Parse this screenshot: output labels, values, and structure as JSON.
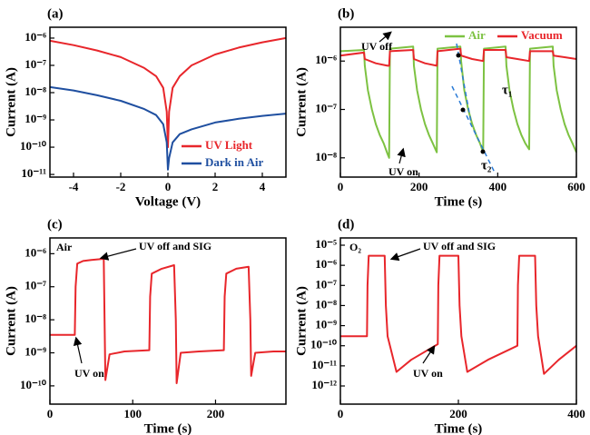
{
  "chart_data": [
    {
      "type": "line",
      "title": "(a)",
      "xlabel": "Voltage (V)",
      "ylabel": "Current (A)",
      "yscale": "log",
      "legend": "lower right",
      "xlim": [
        -5,
        5
      ],
      "xticks": [
        -4,
        -2,
        0,
        2,
        4
      ],
      "ylim": [
        8e-12,
        2.5e-06
      ],
      "yticks": [
        {
          "value": 1e-11,
          "label": "10⁻¹¹"
        },
        {
          "value": 1e-10,
          "label": "10⁻¹⁰"
        },
        {
          "value": 1e-09,
          "label": "10⁻⁹"
        },
        {
          "value": 1e-08,
          "label": "10⁻⁸"
        },
        {
          "value": 1e-07,
          "label": "10⁻⁷"
        },
        {
          "value": 1e-06,
          "label": "10⁻⁶"
        }
      ],
      "series": [
        {
          "name": "UV Light",
          "color": "#e8262b",
          "x": [
            -5,
            -4,
            -3,
            -2,
            -1,
            -0.5,
            -0.2,
            -0.05,
            0,
            0.05,
            0.2,
            0.5,
            1,
            2,
            3,
            4,
            5
          ],
          "values": [
            8e-07,
            5.5e-07,
            3.5e-07,
            2e-07,
            8e-08,
            4e-08,
            1.5e-08,
            2e-09,
            1e-10,
            2e-09,
            1.5e-08,
            4e-08,
            1e-07,
            2.5e-07,
            4.5e-07,
            7e-07,
            1e-06
          ]
        },
        {
          "name": "Dark in Air",
          "color": "#1f4fa0",
          "x": [
            -5,
            -4,
            -3,
            -2,
            -1,
            -0.5,
            -0.2,
            -0.05,
            0,
            0.05,
            0.2,
            0.5,
            1,
            1.5,
            2,
            3,
            4,
            5
          ],
          "values": [
            1.6e-08,
            1.2e-08,
            8e-09,
            5e-09,
            2.5e-09,
            1.5e-09,
            7e-10,
            1.5e-10,
            1.5e-11,
            4e-11,
            1.5e-10,
            3e-10,
            4.5e-10,
            6e-10,
            8e-10,
            1.1e-09,
            1.4e-09,
            1.7e-09
          ]
        }
      ]
    },
    {
      "type": "line",
      "title": "(b)",
      "xlabel": "Time (s)",
      "ylabel": "Current (A)",
      "yscale": "log",
      "legend": "upper right",
      "xlim": [
        0,
        600
      ],
      "xticks": [
        0,
        200,
        400,
        600
      ],
      "ylim": [
        4e-09,
        5e-06
      ],
      "yticks": [
        {
          "value": 1e-08,
          "label": "10⁻⁸"
        },
        {
          "value": 1e-07,
          "label": "10⁻⁷"
        },
        {
          "value": 1e-06,
          "label": "10⁻⁶"
        }
      ],
      "annotations": [
        "UV off",
        "UV on",
        "τ₁",
        "τ₂"
      ],
      "series": [
        {
          "name": "Air",
          "color": "#7dc242",
          "x": [
            0,
            60,
            62,
            70,
            80,
            90,
            100,
            110,
            120,
            124,
            126,
            185,
            187,
            195,
            205,
            215,
            225,
            235,
            245,
            247,
            305,
            307,
            315,
            325,
            335,
            345,
            355,
            363,
            365,
            420,
            422,
            430,
            440,
            450,
            460,
            470,
            480,
            482,
            540,
            542,
            550,
            560,
            570,
            580,
            590,
            600
          ],
          "values": [
            1.6e-06,
            1.7e-06,
            8e-07,
            2.5e-07,
            1e-07,
            5e-08,
            3e-08,
            2e-08,
            1.2e-08,
            1e-08,
            1.8e-06,
            2e-06,
            8e-07,
            2.5e-07,
            1e-07,
            5e-08,
            3e-08,
            2e-08,
            1.3e-08,
            1.8e-06,
            2e-06,
            1e-06,
            2.5e-07,
            1e-07,
            5e-08,
            3e-08,
            2e-08,
            1.3e-08,
            1.8e-06,
            2e-06,
            8e-07,
            2.5e-07,
            1e-07,
            5e-08,
            3e-08,
            2e-08,
            1.5e-08,
            1.8e-06,
            2e-06,
            8e-07,
            2.5e-07,
            1e-07,
            5e-08,
            3e-08,
            2e-08,
            1.3e-08
          ]
        },
        {
          "name": "Vacuum",
          "color": "#e8262b",
          "x": [
            0,
            60,
            62,
            90,
            120,
            124,
            126,
            185,
            187,
            215,
            245,
            247,
            305,
            307,
            335,
            363,
            365,
            420,
            422,
            450,
            480,
            482,
            540,
            542,
            570,
            600
          ],
          "values": [
            1.3e-06,
            1.5e-06,
            1.1e-06,
            9e-07,
            8e-07,
            8e-07,
            1.6e-06,
            1.7e-06,
            1.1e-06,
            9e-07,
            8e-07,
            1.6e-06,
            1.8e-06,
            1.3e-06,
            1.1e-06,
            1e-06,
            1.7e-06,
            1.7e-06,
            1.2e-06,
            1.1e-06,
            1e-06,
            1.6e-06,
            1.6e-06,
            1.3e-06,
            1.2e-06,
            1.1e-06
          ]
        }
      ]
    },
    {
      "type": "line",
      "title": "(c)",
      "xlabel": "Time (s)",
      "ylabel": "Current (A)",
      "yscale": "log",
      "xlim": [
        0,
        285
      ],
      "xticks": [
        0,
        100,
        200
      ],
      "ylim": [
        2.8e-11,
        3e-06
      ],
      "yticks": [
        {
          "value": 1e-10,
          "label": "10⁻¹⁰"
        },
        {
          "value": 1e-09,
          "label": "10⁻⁹"
        },
        {
          "value": 1e-08,
          "label": "10⁻⁸"
        },
        {
          "value": 1e-07,
          "label": "10⁻⁷"
        },
        {
          "value": 1e-06,
          "label": "10⁻⁶"
        }
      ],
      "annotations": [
        "Air",
        "UV off and SIG",
        "UV on"
      ],
      "series": [
        {
          "name": "Air",
          "color": "#e8262b",
          "x": [
            0,
            30,
            31,
            33,
            40,
            50,
            65,
            66,
            67,
            72,
            90,
            120,
            121,
            123,
            135,
            150,
            152,
            153,
            158,
            180,
            210,
            211,
            213,
            225,
            240,
            242,
            243,
            248,
            270,
            285
          ],
          "values": [
            3.5e-09,
            3.5e-09,
            1e-07,
            5e-07,
            6e-07,
            6.5e-07,
            7e-07,
            1e-08,
            1.5e-10,
            9e-10,
            1.1e-09,
            1.2e-09,
            5e-08,
            2.5e-07,
            3.5e-07,
            4.5e-07,
            1e-08,
            1.2e-10,
            1e-09,
            1.1e-09,
            1.2e-09,
            5e-08,
            2.5e-07,
            3.5e-07,
            4e-07,
            1e-08,
            2e-10,
            1e-09,
            1.1e-09,
            1.1e-09
          ]
        }
      ]
    },
    {
      "type": "line",
      "title": "(d)",
      "xlabel": "Time (s)",
      "ylabel": "Current (A)",
      "yscale": "log",
      "xlim": [
        0,
        400
      ],
      "xticks": [
        0,
        200,
        400
      ],
      "ylim": [
        1.25e-13,
        2.3e-05
      ],
      "yticks": [
        {
          "value": 1e-12,
          "label": "10⁻¹²"
        },
        {
          "value": 1e-11,
          "label": "10⁻¹¹"
        },
        {
          "value": 1e-10,
          "label": "10⁻¹⁰"
        },
        {
          "value": 1e-09,
          "label": "10⁻⁹"
        },
        {
          "value": 1e-08,
          "label": "10⁻⁸"
        },
        {
          "value": 1e-07,
          "label": "10⁻⁷"
        },
        {
          "value": 1e-06,
          "label": "10⁻⁶"
        },
        {
          "value": 1e-05,
          "label": "10⁻⁵"
        }
      ],
      "annotations": [
        "O₂",
        "UV off and SIG",
        "UV on"
      ],
      "series": [
        {
          "name": "O₂",
          "color": "#e8262b",
          "x": [
            0,
            45,
            46,
            48,
            75,
            77,
            80,
            95,
            120,
            165,
            166,
            168,
            200,
            202,
            205,
            215,
            250,
            300,
            301,
            303,
            330,
            332,
            335,
            345,
            370,
            400
          ],
          "values": [
            3e-10,
            3e-10,
            1e-07,
            3e-06,
            3e-06,
            1e-08,
            3e-10,
            5e-12,
            2e-11,
            1.2e-10,
            1e-07,
            3e-06,
            3e-06,
            1e-08,
            3e-10,
            5e-12,
            2e-11,
            1e-10,
            1e-07,
            3e-06,
            3e-06,
            1e-08,
            3e-10,
            4e-12,
            2e-11,
            1e-10
          ]
        }
      ]
    }
  ]
}
